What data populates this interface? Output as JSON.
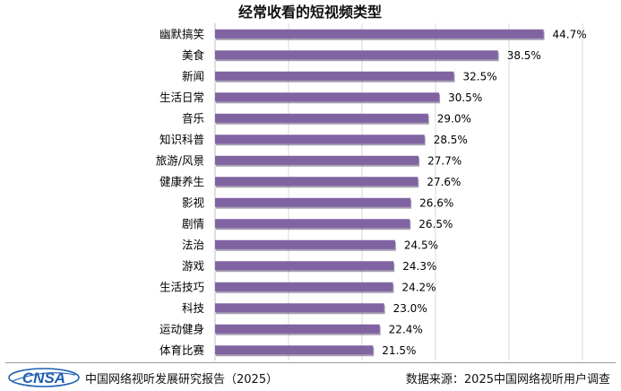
{
  "chart_data": {
    "type": "bar",
    "orientation": "horizontal",
    "title": "经常收看的短视频类型",
    "categories": [
      "幽默搞笑",
      "美食",
      "新闻",
      "生活日常",
      "音乐",
      "知识科普",
      "旅游/风景",
      "健康养生",
      "影视",
      "剧情",
      "法治",
      "游戏",
      "生活技巧",
      "科技",
      "运动健身",
      "体育比赛"
    ],
    "values": [
      44.7,
      38.5,
      32.5,
      30.5,
      29.0,
      28.5,
      27.7,
      27.6,
      26.6,
      26.5,
      24.5,
      24.3,
      24.2,
      23.0,
      22.4,
      21.5
    ],
    "value_labels": [
      "44.7%",
      "38.5%",
      "32.5%",
      "30.5%",
      "29.0%",
      "28.5%",
      "27.7%",
      "27.6%",
      "26.6%",
      "26.5%",
      "24.5%",
      "24.3%",
      "24.2%",
      "23.0%",
      "22.4%",
      "21.5%"
    ],
    "xlim": [
      0,
      50
    ],
    "grid": true,
    "bar_color": "#8064a2",
    "xlabel": "",
    "ylabel": ""
  },
  "footer": {
    "logo_text": "CNSA",
    "report": "中国网络视听发展研究报告（2025）",
    "source": "数据来源：2025中国网络视听用户调查"
  },
  "colors": {
    "bar": "#8064a2",
    "logo_blue": "#1f5fb0"
  }
}
